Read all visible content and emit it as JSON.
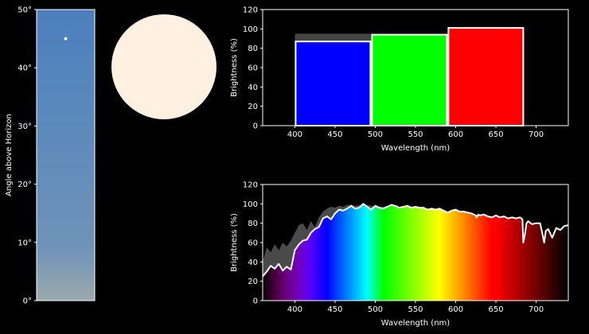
{
  "colors": {
    "background": "#000000",
    "axis": "#ffffff",
    "text": "#ffffff",
    "sun": "#fff0e2",
    "sky_top": "#4a80be",
    "sky_bottom": "#9aa8ad",
    "band_shadow": "#444444",
    "envelope": "#4a4a4a",
    "curve": "#ffffff"
  },
  "chart_data": [
    {
      "type": "bar",
      "role": "sky-gradient-column",
      "ylabel": "Angle above Horizon",
      "ylim": [
        0,
        50
      ],
      "yticks": [
        0,
        10,
        20,
        30,
        40,
        50
      ],
      "ytick_labels": [
        "0°",
        "10°",
        "20°",
        "30°",
        "40°",
        "50°"
      ],
      "sun_marker_angle": 45,
      "grid": false
    },
    {
      "type": "pie",
      "role": "sun-disk-color-swatch",
      "color": "#fff0e2"
    },
    {
      "type": "bar",
      "xlabel": "Wavelength (nm)",
      "ylabel": "Brightness (%)",
      "xlim": [
        360,
        740
      ],
      "ylim": [
        0,
        120
      ],
      "xticks": [
        400,
        450,
        500,
        550,
        600,
        650,
        700
      ],
      "yticks": [
        0,
        20,
        40,
        60,
        80,
        100,
        120
      ],
      "grid": false,
      "bars": [
        {
          "x0": 400,
          "x1": 495,
          "value": 87,
          "shadow_value": 95,
          "color": "#0000ff"
        },
        {
          "x0": 495,
          "x1": 590,
          "value": 94,
          "shadow_value": 95,
          "color": "#00ff00"
        },
        {
          "x0": 590,
          "x1": 685,
          "value": 101,
          "shadow_value": 101,
          "color": "#ff0000"
        }
      ]
    },
    {
      "type": "area",
      "xlabel": "Wavelength (nm)",
      "ylabel": "Brightness (%)",
      "xlim": [
        360,
        740
      ],
      "ylim": [
        0,
        120
      ],
      "xticks": [
        400,
        450,
        500,
        550,
        600,
        650,
        700
      ],
      "yticks": [
        0,
        20,
        40,
        60,
        80,
        100,
        120
      ],
      "grid": false,
      "curve_x": [
        360,
        365,
        370,
        375,
        380,
        385,
        390,
        395,
        400,
        405,
        410,
        415,
        420,
        425,
        430,
        435,
        440,
        445,
        450,
        455,
        460,
        465,
        470,
        475,
        480,
        485,
        490,
        495,
        500,
        505,
        510,
        515,
        520,
        525,
        530,
        535,
        540,
        545,
        550,
        555,
        560,
        565,
        570,
        575,
        580,
        585,
        590,
        595,
        600,
        605,
        610,
        615,
        620,
        625,
        626,
        628,
        630,
        635,
        640,
        645,
        650,
        655,
        660,
        665,
        670,
        675,
        680,
        683,
        684,
        686,
        688,
        690,
        695,
        700,
        705,
        708,
        710,
        712,
        715,
        720,
        725,
        730,
        735,
        740
      ],
      "curve_y": [
        25,
        30,
        36,
        33,
        38,
        31,
        35,
        32,
        52,
        58,
        62,
        63,
        70,
        74,
        76,
        85,
        87,
        84,
        90,
        94,
        93,
        95,
        98,
        95,
        96,
        100,
        97,
        94,
        98,
        96,
        95,
        97,
        99,
        98,
        96,
        97,
        98,
        96,
        97,
        96,
        96,
        94,
        95,
        94,
        95,
        93,
        91,
        93,
        94,
        92,
        92,
        91,
        90,
        88,
        86,
        89,
        88,
        89,
        87,
        86,
        88,
        86,
        87,
        85,
        86,
        85,
        86,
        84,
        60,
        68,
        80,
        82,
        79,
        80,
        80,
        68,
        60,
        72,
        74,
        65,
        75,
        73,
        77,
        78
      ],
      "envelope_upper": [
        40,
        55,
        50,
        58,
        52,
        60,
        56,
        62,
        70,
        78,
        80,
        73,
        82,
        76,
        86,
        92,
        95,
        97,
        96,
        98,
        97,
        99,
        99,
        98,
        99,
        100,
        99,
        98,
        98,
        97,
        97,
        98,
        99,
        98,
        97,
        98,
        98,
        97,
        97,
        96,
        96,
        95,
        95,
        94,
        95,
        93,
        92,
        93,
        94,
        92,
        92,
        91,
        90,
        88,
        86,
        89,
        88,
        89,
        87,
        86,
        88,
        86,
        87,
        85,
        86,
        85,
        86,
        84,
        60,
        68,
        80,
        82,
        79,
        80,
        80,
        68,
        60,
        72,
        74,
        65,
        75,
        73,
        77,
        78
      ]
    }
  ]
}
